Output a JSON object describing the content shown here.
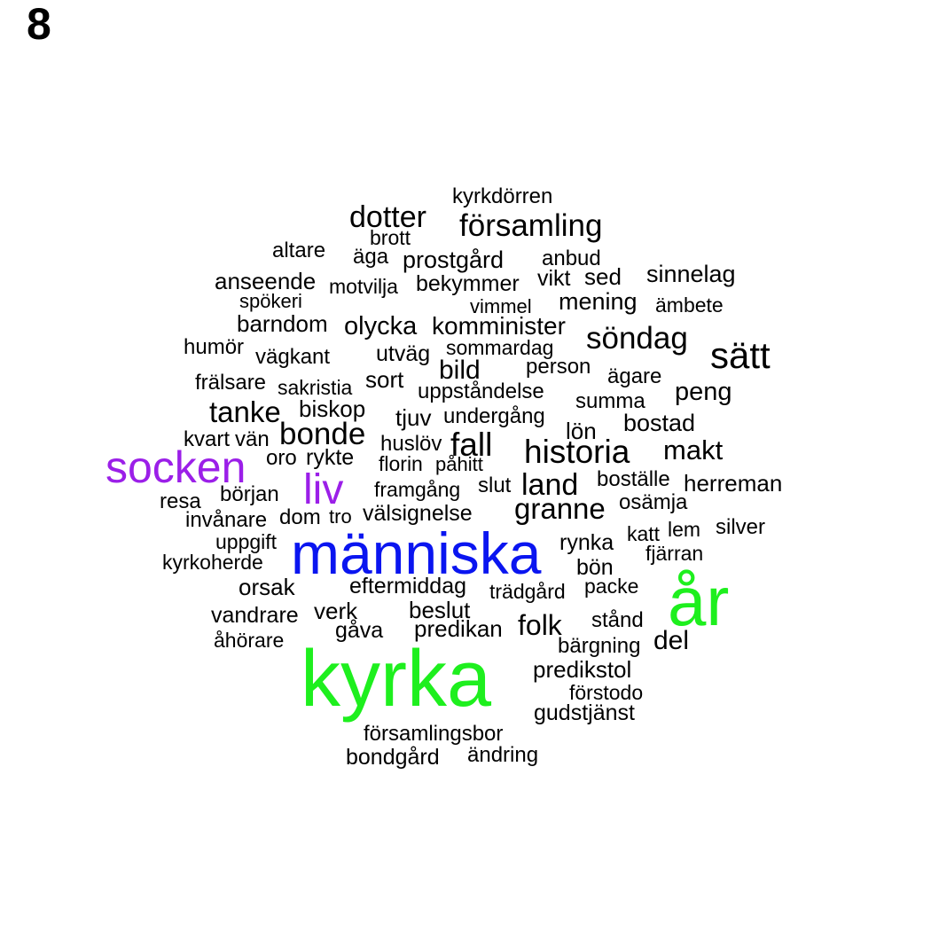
{
  "panel_label": "8",
  "colors": {
    "default": "#000000",
    "purple": "#9B1FE8",
    "blue": "#0A15F0",
    "green": "#1EEF1E"
  },
  "words": [
    {
      "text": "kyrkdörren"
    },
    {
      "text": "dotter"
    },
    {
      "text": "församling"
    },
    {
      "text": "brott"
    },
    {
      "text": "altare"
    },
    {
      "text": "äga"
    },
    {
      "text": "prostgård"
    },
    {
      "text": "anbud"
    },
    {
      "text": "anseende"
    },
    {
      "text": "motvilja"
    },
    {
      "text": "bekymmer"
    },
    {
      "text": "vikt"
    },
    {
      "text": "sed"
    },
    {
      "text": "sinnelag"
    },
    {
      "text": "spökeri"
    },
    {
      "text": "vimmel"
    },
    {
      "text": "mening"
    },
    {
      "text": "ämbete"
    },
    {
      "text": "barndom"
    },
    {
      "text": "olycka"
    },
    {
      "text": "komminister"
    },
    {
      "text": "söndag"
    },
    {
      "text": "humör"
    },
    {
      "text": "vägkant"
    },
    {
      "text": "utväg"
    },
    {
      "text": "sommardag"
    },
    {
      "text": "sätt"
    },
    {
      "text": "bild"
    },
    {
      "text": "person"
    },
    {
      "text": "ägare"
    },
    {
      "text": "frälsare"
    },
    {
      "text": "sakristia"
    },
    {
      "text": "sort"
    },
    {
      "text": "uppståndelse"
    },
    {
      "text": "peng"
    },
    {
      "text": "summa"
    },
    {
      "text": "tanke"
    },
    {
      "text": "biskop"
    },
    {
      "text": "tjuv"
    },
    {
      "text": "undergång"
    },
    {
      "text": "bostad"
    },
    {
      "text": "lön"
    },
    {
      "text": "kvart"
    },
    {
      "text": "vän"
    },
    {
      "text": "bonde"
    },
    {
      "text": "huslöv"
    },
    {
      "text": "fall"
    },
    {
      "text": "historia"
    },
    {
      "text": "makt"
    },
    {
      "text": "socken",
      "color": "purple"
    },
    {
      "text": "oro"
    },
    {
      "text": "rykte"
    },
    {
      "text": "florin"
    },
    {
      "text": "påhitt"
    },
    {
      "text": "liv",
      "color": "purple"
    },
    {
      "text": "framgång"
    },
    {
      "text": "slut"
    },
    {
      "text": "land"
    },
    {
      "text": "boställe"
    },
    {
      "text": "herreman"
    },
    {
      "text": "början"
    },
    {
      "text": "resa"
    },
    {
      "text": "granne"
    },
    {
      "text": "osämja"
    },
    {
      "text": "invånare"
    },
    {
      "text": "dom"
    },
    {
      "text": "tro"
    },
    {
      "text": "välsignelse"
    },
    {
      "text": "uppgift"
    },
    {
      "text": "katt"
    },
    {
      "text": "lem"
    },
    {
      "text": "silver"
    },
    {
      "text": "människa",
      "color": "blue"
    },
    {
      "text": "rynka"
    },
    {
      "text": "fjärran"
    },
    {
      "text": "kyrkoherde"
    },
    {
      "text": "bön"
    },
    {
      "text": "orsak"
    },
    {
      "text": "eftermiddag"
    },
    {
      "text": "trädgård"
    },
    {
      "text": "packe"
    },
    {
      "text": "år",
      "color": "green"
    },
    {
      "text": "vandrare"
    },
    {
      "text": "verk"
    },
    {
      "text": "beslut"
    },
    {
      "text": "gåva"
    },
    {
      "text": "predikan"
    },
    {
      "text": "folk"
    },
    {
      "text": "stånd"
    },
    {
      "text": "åhörare"
    },
    {
      "text": "bärgning"
    },
    {
      "text": "del"
    },
    {
      "text": "kyrka",
      "color": "green"
    },
    {
      "text": "predikstol"
    },
    {
      "text": "förstodo"
    },
    {
      "text": "gudstjänst"
    },
    {
      "text": "församlingsbor"
    },
    {
      "text": "bondgård"
    },
    {
      "text": "ändring"
    }
  ]
}
